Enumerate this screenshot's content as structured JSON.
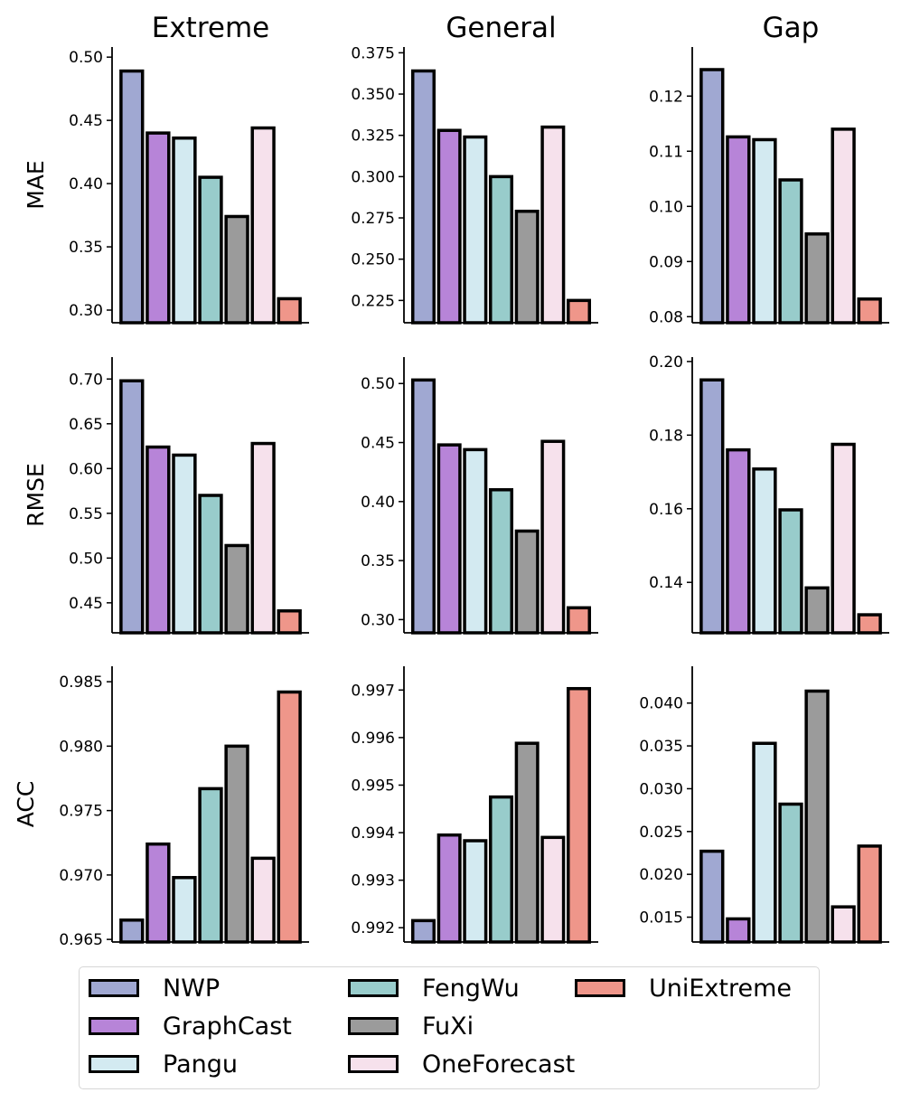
{
  "chart_data": {
    "type": "bar",
    "models": [
      "NWP",
      "GraphCast",
      "Pangu",
      "FengWu",
      "FuXi",
      "OneForecast",
      "UniExtreme"
    ],
    "colors": [
      "#a0a8d2",
      "#b784d8",
      "#d3eaf1",
      "#98cccb",
      "#9b9b9b",
      "#f6e1ec",
      "#ef968a"
    ],
    "columns": [
      "Extreme",
      "General",
      "Gap"
    ],
    "rows": [
      "MAE",
      "RMSE",
      "ACC"
    ],
    "panels": [
      {
        "row": "MAE",
        "column": "Extreme",
        "ylim": [
          0.29,
          0.508
        ],
        "yticks": [
          "0.30",
          "0.35",
          "0.40",
          "0.45",
          "0.50"
        ],
        "values": [
          0.489,
          0.44,
          0.436,
          0.405,
          0.374,
          0.444,
          0.309
        ]
      },
      {
        "row": "MAE",
        "column": "General",
        "ylim": [
          0.2115,
          0.3785
        ],
        "yticks": [
          "0.225",
          "0.250",
          "0.275",
          "0.300",
          "0.325",
          "0.350",
          "0.375"
        ],
        "values": [
          0.364,
          0.328,
          0.324,
          0.3,
          0.279,
          0.33,
          0.225
        ]
      },
      {
        "row": "MAE",
        "column": "Gap",
        "ylim": [
          0.0789,
          0.1289
        ],
        "yticks": [
          "0.08",
          "0.09",
          "0.10",
          "0.11",
          "0.12"
        ],
        "values": [
          0.1248,
          0.1126,
          0.1121,
          0.1048,
          0.095,
          0.114,
          0.0832
        ]
      },
      {
        "row": "RMSE",
        "column": "Extreme",
        "ylim": [
          0.4165,
          0.7245
        ],
        "yticks": [
          "0.45",
          "0.50",
          "0.55",
          "0.60",
          "0.65",
          "0.70"
        ],
        "values": [
          0.698,
          0.624,
          0.615,
          0.57,
          0.514,
          0.628,
          0.441
        ]
      },
      {
        "row": "RMSE",
        "column": "General",
        "ylim": [
          0.2888,
          0.5224
        ],
        "yticks": [
          "0.30",
          "0.35",
          "0.40",
          "0.45",
          "0.50"
        ],
        "values": [
          0.503,
          0.448,
          0.444,
          0.41,
          0.375,
          0.451,
          0.31
        ]
      },
      {
        "row": "RMSE",
        "column": "Gap",
        "ylim": [
          0.1263,
          0.2012
        ],
        "yticks": [
          "0.14",
          "0.16",
          "0.18",
          "0.20"
        ],
        "values": [
          0.195,
          0.176,
          0.1708,
          0.1597,
          0.1385,
          0.1775,
          0.1312
        ]
      },
      {
        "row": "ACC",
        "column": "Extreme",
        "ylim": [
          0.9648,
          0.9862
        ],
        "yticks": [
          "0.965",
          "0.970",
          "0.975",
          "0.980",
          "0.985"
        ],
        "values": [
          0.9665,
          0.9724,
          0.9698,
          0.9767,
          0.98,
          0.9713,
          0.9842
        ]
      },
      {
        "row": "ACC",
        "column": "General",
        "ylim": [
          0.9917,
          0.9975
        ],
        "yticks": [
          "0.992",
          "0.993",
          "0.994",
          "0.995",
          "0.996",
          "0.997"
        ],
        "values": [
          0.99215,
          0.99395,
          0.99383,
          0.99475,
          0.99588,
          0.9939,
          0.99703
        ]
      },
      {
        "row": "ACC",
        "column": "Gap",
        "ylim": [
          0.0121,
          0.0443
        ],
        "yticks": [
          "0.015",
          "0.020",
          "0.025",
          "0.030",
          "0.035",
          "0.040"
        ],
        "values": [
          0.0227,
          0.0148,
          0.0353,
          0.0282,
          0.0414,
          0.0162,
          0.0233
        ]
      }
    ]
  }
}
